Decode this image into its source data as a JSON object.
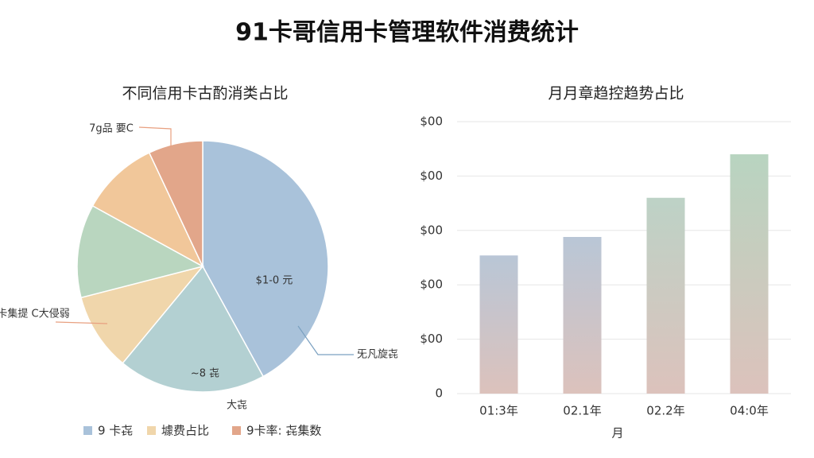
{
  "title": "91卡哥信用卡管理软件消费统计",
  "chart_data": [
    {
      "type": "pie",
      "title": "不同信用卡古酌消类占比",
      "categories": [
        "$1-0 元",
        "~8 㐂",
        "卡集提 C大侵弱",
        null,
        null,
        "7g品 要C"
      ],
      "values": [
        42,
        19,
        10,
        12,
        10,
        7
      ],
      "colors": [
        "#a9c2da",
        "#b3d0d2",
        "#f0d6ab",
        "#b9d6bf",
        "#f1c79a",
        "#e2a68a"
      ],
      "annotations": [
        "大㐂",
        "旡凡旋㐂"
      ],
      "legend": [
        {
          "name": "9 卡㐂",
          "color": "#a9c2da"
        },
        {
          "name": "壉费占比",
          "color": "#f0d6ab"
        },
        {
          "name": "9卡率: 㐂集数",
          "color": "#e2a68a"
        }
      ]
    },
    {
      "type": "bar",
      "title": "月月章趋控趋势占比",
      "xlabel": "月",
      "categories": [
        "01:3年",
        "02.1年",
        "02.2年",
        "04:0年"
      ],
      "values": [
        2.54,
        2.88,
        3.6,
        4.4
      ],
      "colors": [
        "#b9c6d6",
        "#b9c6d6",
        "#bdd2c6",
        "#b8d4c0"
      ],
      "ylim": [
        0,
        5
      ],
      "yticks": [
        0,
        {
          "value": 1,
          "label": "$00"
        },
        {
          "value": 2,
          "label": "$00"
        },
        {
          "value": 3,
          "label": "$00"
        },
        {
          "value": 4,
          "label": "$00"
        },
        {
          "value": 5,
          "label": "$00"
        }
      ],
      "grid": true
    }
  ]
}
